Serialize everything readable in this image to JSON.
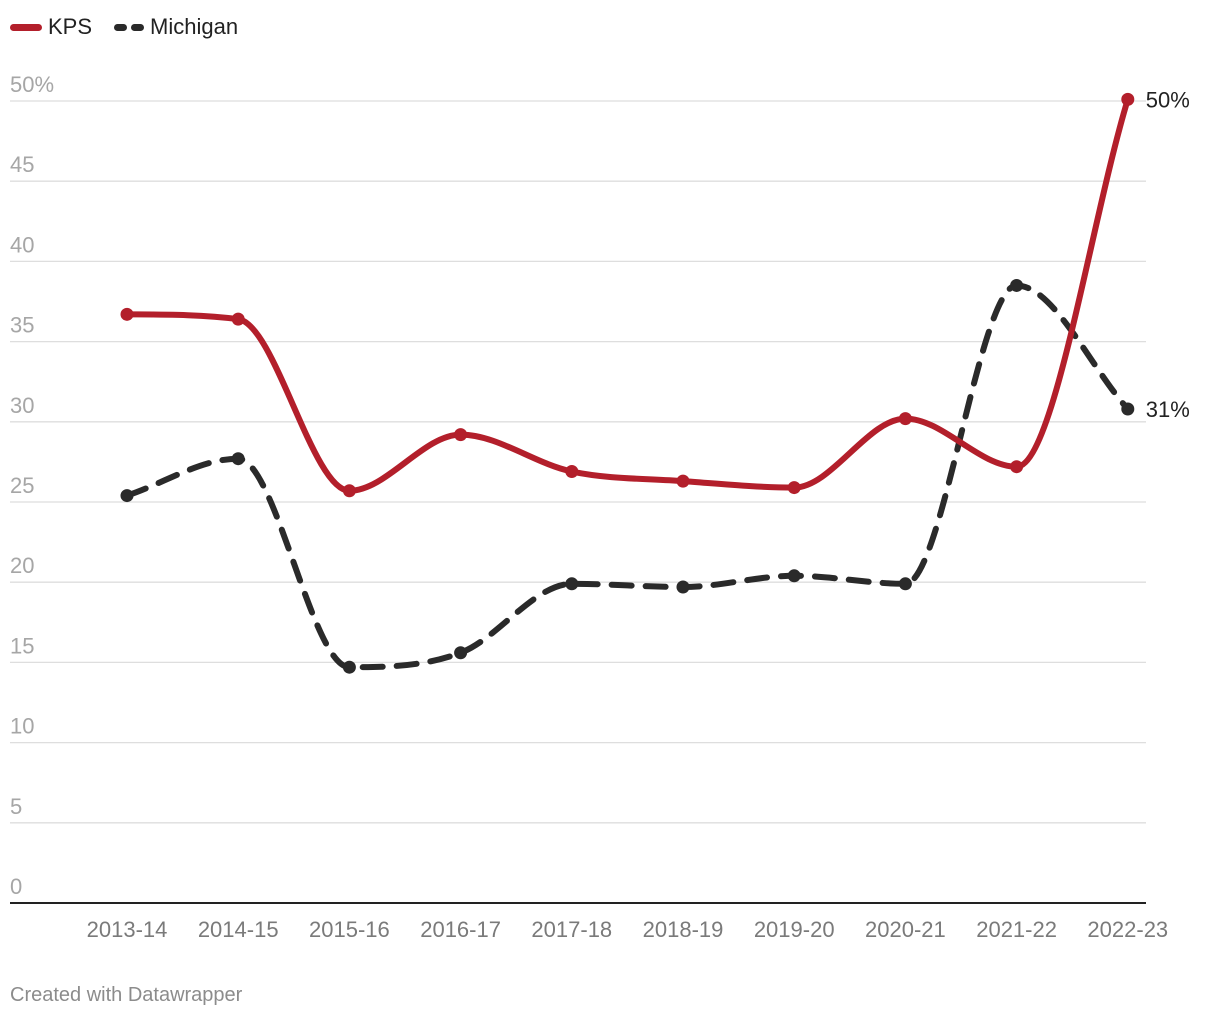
{
  "chart_data": {
    "type": "line",
    "title": "",
    "xlabel": "",
    "ylabel": "",
    "categories": [
      "2013-14",
      "2014-15",
      "2015-16",
      "2016-17",
      "2017-18",
      "2018-19",
      "2019-20",
      "2020-21",
      "2021-22",
      "2022-23"
    ],
    "ylim": [
      0,
      50
    ],
    "yticks": [
      0,
      5,
      10,
      15,
      20,
      25,
      30,
      35,
      40,
      45,
      50
    ],
    "ytick_labels": [
      "0",
      "5",
      "10",
      "15",
      "20",
      "25",
      "30",
      "35",
      "40",
      "45",
      "50%"
    ],
    "grid": true,
    "legend_position": "top-left",
    "series": [
      {
        "name": "KPS",
        "color": "#b31f2b",
        "style": "solid",
        "values": [
          36.7,
          36.4,
          25.7,
          29.2,
          26.9,
          26.3,
          25.9,
          30.2,
          27.2,
          50.1
        ],
        "end_label": "50%"
      },
      {
        "name": "Michigan",
        "color": "#2a2a2a",
        "style": "dashed",
        "values": [
          25.4,
          27.7,
          14.7,
          15.6,
          19.9,
          19.7,
          20.4,
          19.9,
          38.5,
          30.8
        ],
        "end_label": "31%"
      }
    ]
  },
  "footer": {
    "credit": "Created with Datawrapper"
  }
}
